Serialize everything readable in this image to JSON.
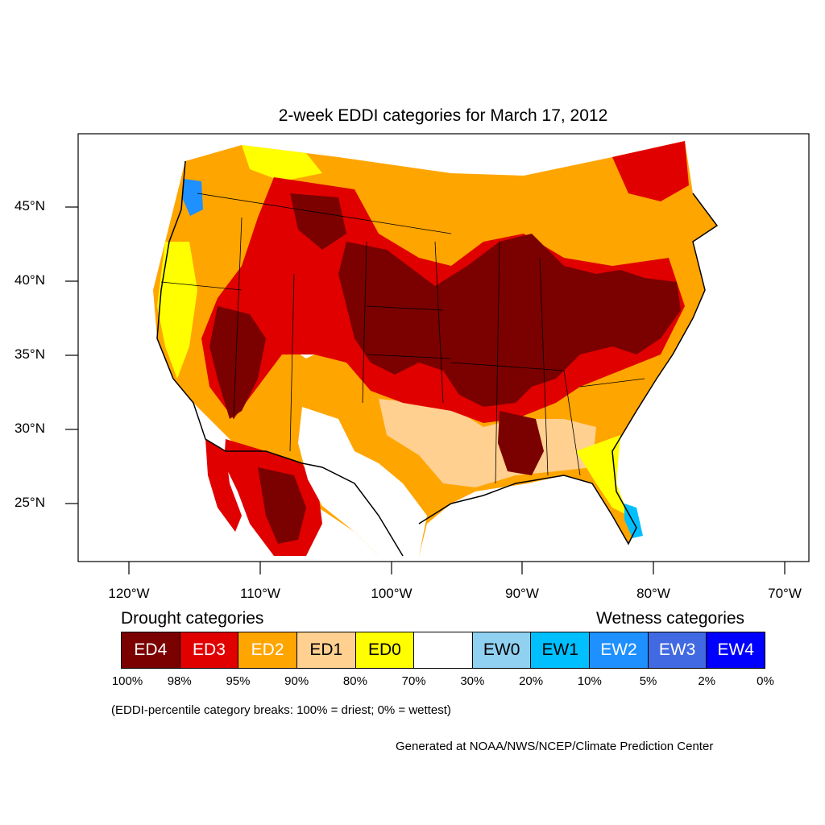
{
  "title": "2-week EDDI categories for March 17, 2012",
  "map": {
    "lat_labels": [
      "45°N",
      "40°N",
      "35°N",
      "30°N",
      "25°N"
    ],
    "lon_labels": [
      "120°W",
      "110°W",
      "100°W",
      "90°W",
      "80°W",
      "70°W"
    ],
    "colors": {
      "ED4": "#7b0000",
      "ED3": "#e00000",
      "ED2": "#ffa500",
      "ED1": "#ffd090",
      "ED0": "#ffff00",
      "neutral": "#ffffff",
      "EW0": "#90d0f0",
      "EW1": "#00bfff",
      "EW2": "#1e90ff",
      "EW3": "#4169e1",
      "EW4": "#0000ff"
    }
  },
  "legend": {
    "drought_heading": "Drought categories",
    "wetness_heading": "Wetness categories",
    "categories": [
      {
        "label": "ED4",
        "color": "#7b0000",
        "text_color": "#ffffff"
      },
      {
        "label": "ED3",
        "color": "#e00000",
        "text_color": "#ffffff"
      },
      {
        "label": "ED2",
        "color": "#ffa500",
        "text_color": "#ffffff"
      },
      {
        "label": "ED1",
        "color": "#ffd090",
        "text_color": "#000000"
      },
      {
        "label": "ED0",
        "color": "#ffff00",
        "text_color": "#000000"
      },
      {
        "label": "",
        "color": "#ffffff",
        "text_color": "#000000"
      },
      {
        "label": "EW0",
        "color": "#90d0f0",
        "text_color": "#000000"
      },
      {
        "label": "EW1",
        "color": "#00bfff",
        "text_color": "#000000"
      },
      {
        "label": "EW2",
        "color": "#1e90ff",
        "text_color": "#ffffff"
      },
      {
        "label": "EW3",
        "color": "#4169e1",
        "text_color": "#ffffff"
      },
      {
        "label": "EW4",
        "color": "#0000ff",
        "text_color": "#ffffff"
      }
    ],
    "breaks": [
      "100%",
      "98%",
      "95%",
      "90%",
      "80%",
      "70%",
      "30%",
      "20%",
      "10%",
      "5%",
      "2%",
      "0%"
    ],
    "note": "(EDDI-percentile category breaks: 100% = driest; 0% = wettest)"
  },
  "credit": "Generated at NOAA/NWS/NCEP/Climate Prediction Center"
}
